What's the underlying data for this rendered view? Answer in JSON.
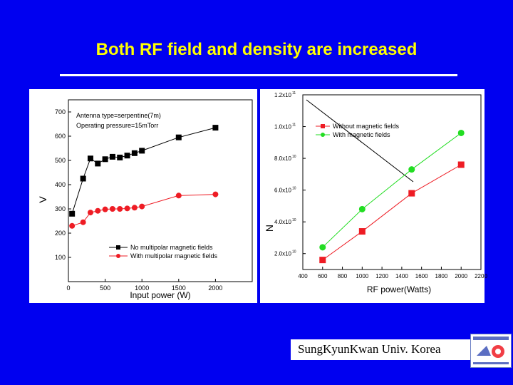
{
  "slide": {
    "title": "Both RF field and density are increased",
    "footer": "SungKyunKwan Univ. Korea"
  },
  "colors": {
    "background": "#0000f0",
    "title": "#ffff00",
    "black_series": "#000000",
    "red_series": "#ee1c24",
    "green_series": "#22dd22"
  },
  "chart_data": [
    {
      "type": "line",
      "xlabel": "Input power (W)",
      "ylabel": "V",
      "xticks": [
        0,
        500,
        1000,
        1500,
        2000
      ],
      "yticks": [
        100,
        200,
        300,
        400,
        500,
        600,
        700
      ],
      "xlim": [
        0,
        2500
      ],
      "ylim": [
        0,
        750
      ],
      "annotations": [
        "Antenna type=serpentine(7m)",
        "Operating pressure=15mTorr"
      ],
      "legend": [
        "No multipolar magnetic fields",
        "With multipolar magnetic fields"
      ],
      "legend_position": "bottom-right",
      "series": [
        {
          "name": "No multipolar magnetic fields",
          "marker": "square",
          "color": "#000000",
          "x": [
            50,
            200,
            300,
            400,
            500,
            600,
            700,
            800,
            900,
            1000,
            1500,
            2000
          ],
          "values": [
            280,
            425,
            508,
            487,
            505,
            515,
            512,
            520,
            530,
            540,
            595,
            635
          ]
        },
        {
          "name": "With multipolar magnetic fields",
          "marker": "circle",
          "color": "#ee1c24",
          "x": [
            50,
            200,
            300,
            400,
            500,
            600,
            700,
            800,
            900,
            1000,
            1500,
            2000
          ],
          "values": [
            230,
            245,
            285,
            292,
            298,
            300,
            300,
            302,
            305,
            310,
            355,
            360
          ]
        }
      ]
    },
    {
      "type": "line",
      "xlabel": "RF power(Watts)",
      "ylabel": "N",
      "xticks": [
        400,
        600,
        800,
        1000,
        1200,
        1400,
        1600,
        1800,
        2000,
        2200
      ],
      "xtick_labels": [
        "400",
        "600",
        "800",
        "1000",
        "1200",
        "1400",
        "1600",
        "1800",
        "2000",
        "2200"
      ],
      "yticks": [
        20000000000.0,
        40000000000.0,
        60000000000.0,
        80000000000.0,
        100000000000.0,
        120000000000.0
      ],
      "ytick_labels": [
        "2.0x10",
        "4.0x10",
        "6.0x10",
        "8.0x10",
        "1.0x10",
        "1.2x10"
      ],
      "ytick_exponents": [
        "10",
        "10",
        "10",
        "10",
        "11",
        "11"
      ],
      "xlim": [
        400,
        2200
      ],
      "ylim": [
        10000000000.0,
        120000000000.0
      ],
      "legend": [
        "Without magnetic fields",
        "With magnetic fields"
      ],
      "legend_position": "top-right",
      "series": [
        {
          "name": "Without magnetic fields",
          "marker": "square",
          "color": "#ee1c24",
          "x": [
            600,
            1000,
            1500,
            2000
          ],
          "values": [
            16000000000.0,
            34000000000.0,
            58000000000.0,
            76000000000.0
          ]
        },
        {
          "name": "With magnetic fields",
          "marker": "circle",
          "color": "#22dd22",
          "x": [
            600,
            1000,
            1500,
            2000
          ],
          "values": [
            24000000000.0,
            48000000000.0,
            73000000000.0,
            96000000000.0
          ]
        }
      ]
    }
  ]
}
